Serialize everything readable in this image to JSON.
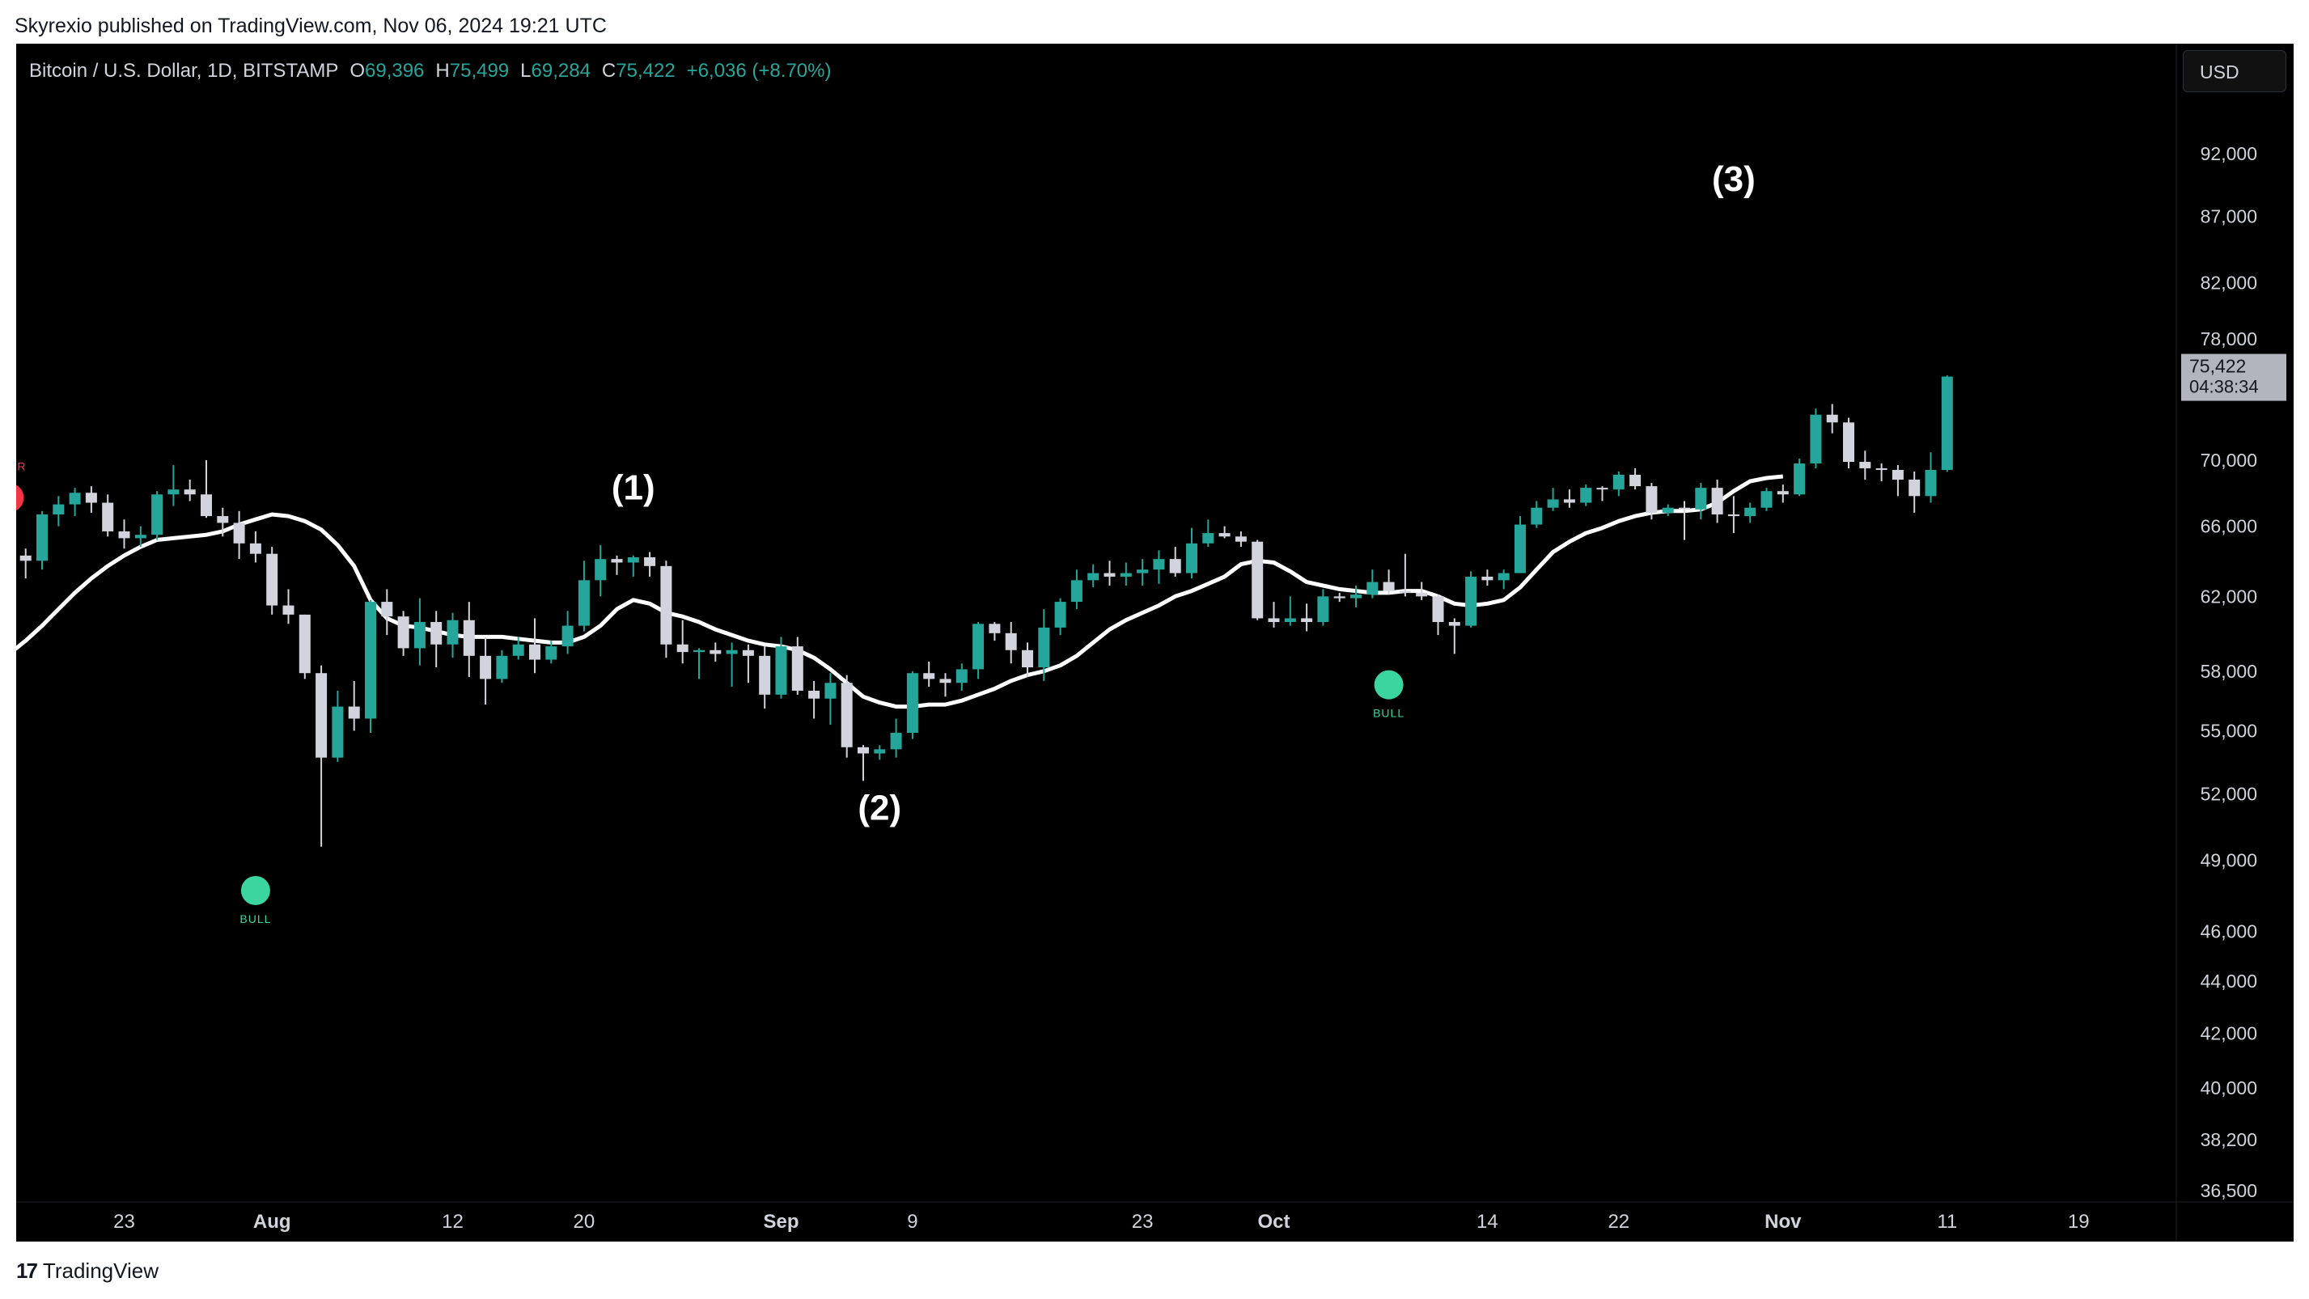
{
  "header": {
    "publisher": "Skyrexio published on TradingView.com, Nov 06, 2024 19:21 UTC"
  },
  "legend": {
    "symbol": "Bitcoin / U.S. Dollar, 1D, BITSTAMP",
    "o_label": "O",
    "o_value": "69,396",
    "h_label": "H",
    "h_value": "75,499",
    "l_label": "L",
    "l_value": "69,284",
    "c_label": "C",
    "c_value": "75,422",
    "change": "+6,036 (+8.70%)"
  },
  "currency": "USD",
  "footer": {
    "brand": "TradingView"
  },
  "colors": {
    "up": "#26a69a",
    "down": "#d1d4dc",
    "ma": "#ffffff",
    "bull": "#3bd6a0",
    "bear": "#f23645",
    "axis_text": "#d1d4dc",
    "price_label_bg": "#b2b5be"
  },
  "chart_data": {
    "type": "candlestick",
    "title": "Bitcoin / U.S. Dollar, 1D, BITSTAMP",
    "scale": "log",
    "ylim": [
      36500,
      100000
    ],
    "y_ticks": [
      92000,
      87000,
      82000,
      78000,
      70000,
      66000,
      62000,
      58000,
      55000,
      52000,
      49000,
      46000,
      44000,
      42000,
      40000,
      38200,
      36500
    ],
    "x_ticks": [
      {
        "label": "23",
        "index": 0,
        "bold": false
      },
      {
        "label": "Aug",
        "index": 9,
        "bold": true
      },
      {
        "label": "12",
        "index": 20,
        "bold": false
      },
      {
        "label": "20",
        "index": 28,
        "bold": false
      },
      {
        "label": "Sep",
        "index": 40,
        "bold": true
      },
      {
        "label": "9",
        "index": 48,
        "bold": false
      },
      {
        "label": "23",
        "index": 62,
        "bold": false
      },
      {
        "label": "Oct",
        "index": 70,
        "bold": true
      },
      {
        "label": "14",
        "index": 83,
        "bold": false
      },
      {
        "label": "22",
        "index": 91,
        "bold": false
      },
      {
        "label": "Nov",
        "index": 101,
        "bold": true
      },
      {
        "label": "11",
        "index": 111,
        "bold": false
      },
      {
        "label": "19",
        "index": 119,
        "bold": false
      }
    ],
    "first_index": -7,
    "last_price": {
      "value": "75,422",
      "countdown": "04:38:34",
      "price": 75422
    },
    "candles": [
      [
        65400,
        65900,
        63800,
        64300
      ],
      [
        64300,
        64700,
        63000,
        64000
      ],
      [
        64000,
        66900,
        63500,
        66700
      ],
      [
        66700,
        67800,
        66000,
        67300
      ],
      [
        67300,
        68300,
        66600,
        68000
      ],
      [
        68000,
        68400,
        66800,
        67400
      ],
      [
        67400,
        67900,
        65400,
        65700
      ],
      [
        65700,
        66400,
        64700,
        65300
      ],
      [
        65300,
        66000,
        64800,
        65500
      ],
      [
        65500,
        68100,
        65200,
        67900
      ],
      [
        67900,
        69700,
        67200,
        68200
      ],
      [
        68200,
        68800,
        67500,
        67900
      ],
      [
        67900,
        70000,
        66500,
        66600
      ],
      [
        66600,
        67100,
        65400,
        66200
      ],
      [
        66200,
        66900,
        64100,
        65000
      ],
      [
        65000,
        65700,
        63900,
        64400
      ],
      [
        64400,
        64800,
        61000,
        61500
      ],
      [
        61500,
        62400,
        60500,
        61000
      ],
      [
        61000,
        61000,
        57600,
        57900
      ],
      [
        57900,
        58300,
        49600,
        53700
      ],
      [
        53700,
        57000,
        53500,
        56200
      ],
      [
        56200,
        57500,
        55000,
        55600
      ],
      [
        55600,
        61800,
        54900,
        61700
      ],
      [
        61700,
        62400,
        59900,
        60900
      ],
      [
        60900,
        61200,
        58800,
        59200
      ],
      [
        59200,
        61900,
        58300,
        60600
      ],
      [
        60600,
        61200,
        58200,
        59400
      ],
      [
        59400,
        61100,
        58700,
        60700
      ],
      [
        60700,
        61700,
        57700,
        58800
      ],
      [
        58800,
        59800,
        56300,
        57600
      ],
      [
        57600,
        59100,
        57400,
        58800
      ],
      [
        58800,
        59800,
        58600,
        59400
      ],
      [
        59400,
        60800,
        57900,
        58600
      ],
      [
        58600,
        59600,
        58400,
        59300
      ],
      [
        59300,
        61200,
        58900,
        60400
      ],
      [
        60400,
        64000,
        60100,
        62900
      ],
      [
        62900,
        64900,
        62000,
        64100
      ],
      [
        64100,
        64300,
        63200,
        63900
      ],
      [
        63900,
        64300,
        63100,
        64200
      ],
      [
        64200,
        64500,
        63100,
        63700
      ],
      [
        63700,
        64000,
        58700,
        59400
      ],
      [
        59400,
        60700,
        58400,
        59000
      ],
      [
        59000,
        59200,
        57600,
        59100
      ],
      [
        59100,
        59500,
        58500,
        58900
      ],
      [
        58900,
        59500,
        57200,
        59100
      ],
      [
        59100,
        59400,
        57400,
        58800
      ],
      [
        58800,
        59300,
        56100,
        56800
      ],
      [
        56800,
        59800,
        56600,
        59300
      ],
      [
        59300,
        59800,
        56800,
        57000
      ],
      [
        57000,
        57500,
        55600,
        56600
      ],
      [
        56600,
        57900,
        55300,
        57400
      ],
      [
        57400,
        57800,
        53700,
        54200
      ],
      [
        54200,
        54300,
        52600,
        53900
      ],
      [
        53900,
        54300,
        53600,
        54100
      ],
      [
        54100,
        55600,
        53700,
        54900
      ],
      [
        54900,
        58000,
        54600,
        57900
      ],
      [
        57900,
        58500,
        57200,
        57600
      ],
      [
        57600,
        57900,
        56700,
        57400
      ],
      [
        57400,
        58400,
        57000,
        58100
      ],
      [
        58100,
        60600,
        57600,
        60500
      ],
      [
        60500,
        60600,
        59600,
        60000
      ],
      [
        60000,
        60600,
        58400,
        59100
      ],
      [
        59100,
        59500,
        57700,
        58200
      ],
      [
        58200,
        61300,
        57500,
        60300
      ],
      [
        60300,
        61900,
        59900,
        61700
      ],
      [
        61700,
        63500,
        61300,
        62900
      ],
      [
        62900,
        63800,
        62500,
        63300
      ],
      [
        63300,
        64000,
        62600,
        63100
      ],
      [
        63100,
        63900,
        62600,
        63300
      ],
      [
        63300,
        64100,
        62600,
        63500
      ],
      [
        63500,
        64600,
        62700,
        64100
      ],
      [
        64100,
        64800,
        63100,
        63300
      ],
      [
        63300,
        65900,
        63000,
        65000
      ],
      [
        65000,
        66400,
        64800,
        65600
      ],
      [
        65600,
        66000,
        65300,
        65400
      ],
      [
        65400,
        65700,
        64800,
        65100
      ],
      [
        65100,
        65200,
        60700,
        60800
      ],
      [
        60800,
        61700,
        60300,
        60600
      ],
      [
        60600,
        62000,
        60400,
        60800
      ],
      [
        60800,
        61600,
        60100,
        60600
      ],
      [
        60600,
        62400,
        60400,
        62000
      ],
      [
        62000,
        62200,
        61700,
        61900
      ],
      [
        61900,
        62600,
        61400,
        62100
      ],
      [
        62100,
        63500,
        61900,
        62800
      ],
      [
        62800,
        63500,
        62100,
        62300
      ],
      [
        62300,
        64400,
        62000,
        62200
      ],
      [
        62200,
        62800,
        61800,
        62000
      ],
      [
        62000,
        62100,
        59900,
        60600
      ],
      [
        60600,
        60800,
        58900,
        60400
      ],
      [
        60400,
        63400,
        60300,
        63100
      ],
      [
        63100,
        63500,
        62600,
        62900
      ],
      [
        62900,
        63500,
        62400,
        63300
      ],
      [
        63300,
        66600,
        63300,
        66100
      ],
      [
        66100,
        67500,
        65900,
        67100
      ],
      [
        67100,
        68300,
        66900,
        67600
      ],
      [
        67600,
        68200,
        67100,
        67400
      ],
      [
        67400,
        68500,
        67200,
        68300
      ],
      [
        68300,
        68400,
        67500,
        68200
      ],
      [
        68200,
        69300,
        67800,
        69100
      ],
      [
        69100,
        69500,
        68200,
        68400
      ],
      [
        68400,
        68600,
        66400,
        66800
      ],
      [
        66800,
        67300,
        66600,
        67100
      ],
      [
        67100,
        67500,
        65200,
        67000
      ],
      [
        67000,
        68600,
        66400,
        68300
      ],
      [
        68300,
        68800,
        66200,
        66700
      ],
      [
        66700,
        67800,
        65600,
        66600
      ],
      [
        66600,
        67400,
        66200,
        67100
      ],
      [
        67100,
        68300,
        66900,
        68100
      ],
      [
        68100,
        68500,
        67400,
        67900
      ],
      [
        67900,
        70100,
        67800,
        69800
      ],
      [
        69800,
        73300,
        69500,
        72900
      ],
      [
        72900,
        73600,
        71700,
        72400
      ],
      [
        72400,
        72700,
        69500,
        69900
      ],
      [
        69900,
        70600,
        68800,
        69500
      ],
      [
        69500,
        69800,
        68700,
        69400
      ],
      [
        69400,
        69700,
        67800,
        68800
      ],
      [
        68800,
        69300,
        66800,
        67800
      ],
      [
        67800,
        70500,
        67400,
        69400
      ],
      [
        69396,
        75499,
        69284,
        75422
      ]
    ],
    "moving_average": [
      58900,
      59600,
      60400,
      61300,
      62200,
      63000,
      63700,
      64300,
      64800,
      65200,
      65300,
      65400,
      65500,
      65700,
      66100,
      66400,
      66700,
      66600,
      66300,
      65800,
      64900,
      63700,
      61800,
      60800,
      60400,
      60300,
      60100,
      59900,
      59800,
      59800,
      59800,
      59700,
      59600,
      59500,
      59500,
      59800,
      60400,
      61300,
      61800,
      61600,
      61100,
      60900,
      60600,
      60200,
      59900,
      59600,
      59400,
      59300,
      59100,
      58700,
      58100,
      57400,
      56700,
      56400,
      56200,
      56200,
      56300,
      56300,
      56500,
      56800,
      57100,
      57500,
      57800,
      58000,
      58300,
      58800,
      59500,
      60200,
      60700,
      61100,
      61500,
      62000,
      62300,
      62700,
      63100,
      63800,
      64000,
      63900,
      63400,
      62800,
      62600,
      62400,
      62300,
      62200,
      62200,
      62300,
      62300,
      62000,
      61600,
      61500,
      61600,
      61800,
      62500,
      63500,
      64500,
      65100,
      65600,
      65900,
      66300,
      66600,
      66800,
      66900,
      66900,
      67000,
      67400,
      68100,
      68700,
      68900,
      69000
    ],
    "signals": [
      {
        "label": "BULL",
        "index": 8,
        "price": 47700
      },
      {
        "label": "BULL",
        "index": 77,
        "price": 57300
      },
      {
        "label": "BEAR",
        "index": -7,
        "price": 67700
      }
    ],
    "wave_labels": [
      {
        "label": "(1)",
        "index": 31,
        "price": 67600
      },
      {
        "label": "(2)",
        "index": 46,
        "price": 50800
      },
      {
        "label": "(3)",
        "index": 98,
        "price": 89000
      }
    ]
  }
}
